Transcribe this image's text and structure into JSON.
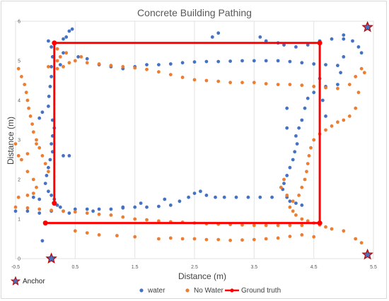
{
  "chart_data": {
    "type": "scatter",
    "title": "Concrete Building Pathing",
    "xlabel": "Distance (m)",
    "ylabel": "Distance (m)",
    "xlim": [
      -0.5,
      5.5
    ],
    "ylim": [
      0,
      6
    ],
    "x_ticks": [
      "-0.5",
      "0.5",
      "1.5",
      "2.5",
      "3.5",
      "4.5",
      "5.5"
    ],
    "y_ticks": [
      "0",
      "1",
      "2",
      "3",
      "4",
      "5",
      "6"
    ],
    "grid": "vertical",
    "legend_position": "bottom",
    "colors": {
      "water": "#4472c4",
      "no_water": "#ed7d31",
      "ground_truth": "#ff0000",
      "anchor_fill": "#4472c4",
      "anchor_stroke": "#c00000"
    },
    "series": [
      {
        "name": "water",
        "type": "scatter",
        "points": [
          [
            0.05,
            5.5
          ],
          [
            0.15,
            5.45
          ],
          [
            0.3,
            5.55
          ],
          [
            0.1,
            5.35
          ],
          [
            0.12,
            5.1
          ],
          [
            0.1,
            4.85
          ],
          [
            0.1,
            4.6
          ],
          [
            0.08,
            4.35
          ],
          [
            0.06,
            4.1
          ],
          [
            0.05,
            3.85
          ],
          [
            -0.05,
            3.7
          ],
          [
            -0.1,
            3.55
          ],
          [
            0.12,
            3.5
          ],
          [
            0.15,
            3.3
          ],
          [
            0.12,
            3.1
          ],
          [
            0.1,
            2.9
          ],
          [
            0.12,
            2.7
          ],
          [
            0.08,
            2.5
          ],
          [
            0.05,
            2.3
          ],
          [
            0.02,
            2.1
          ],
          [
            0.0,
            1.9
          ],
          [
            0.05,
            1.7
          ],
          [
            0.1,
            1.6
          ],
          [
            0.15,
            1.5
          ],
          [
            0.2,
            1.35
          ],
          [
            0.25,
            1.3
          ],
          [
            -0.1,
            1.5
          ],
          [
            -0.2,
            1.55
          ],
          [
            0.3,
            2.6
          ],
          [
            0.4,
            2.6
          ],
          [
            0.25,
            4.9
          ],
          [
            0.3,
            5.2
          ],
          [
            0.35,
            5.6
          ],
          [
            0.4,
            5.75
          ],
          [
            0.45,
            5.8
          ],
          [
            0.55,
            5.1
          ],
          [
            0.7,
            5.05
          ],
          [
            0.9,
            4.9
          ],
          [
            1.1,
            4.85
          ],
          [
            1.3,
            4.8
          ],
          [
            1.5,
            4.85
          ],
          [
            1.7,
            4.9
          ],
          [
            1.9,
            4.9
          ],
          [
            2.1,
            4.92
          ],
          [
            2.3,
            4.95
          ],
          [
            2.5,
            4.97
          ],
          [
            2.7,
            4.98
          ],
          [
            2.9,
            4.98
          ],
          [
            3.1,
            4.99
          ],
          [
            3.3,
            5.0
          ],
          [
            3.5,
            5.0
          ],
          [
            3.7,
            5.0
          ],
          [
            3.9,
            5.0
          ],
          [
            4.1,
            4.98
          ],
          [
            4.3,
            4.95
          ],
          [
            4.5,
            4.92
          ],
          [
            4.7,
            4.9
          ],
          [
            4.9,
            4.88
          ],
          [
            3.6,
            5.6
          ],
          [
            3.7,
            5.5
          ],
          [
            3.9,
            5.45
          ],
          [
            4.0,
            5.4
          ],
          [
            4.2,
            5.35
          ],
          [
            4.4,
            5.4
          ],
          [
            4.6,
            5.5
          ],
          [
            4.8,
            5.55
          ],
          [
            5.0,
            5.65
          ],
          [
            5.15,
            5.5
          ],
          [
            5.25,
            5.35
          ],
          [
            5.3,
            5.2
          ],
          [
            5.0,
            5.1
          ],
          [
            4.95,
            4.7
          ],
          [
            4.9,
            4.4
          ],
          [
            4.7,
            4.35
          ],
          [
            4.5,
            4.2
          ],
          [
            4.4,
            4.05
          ],
          [
            4.35,
            3.8
          ],
          [
            4.3,
            3.5
          ],
          [
            4.25,
            3.3
          ],
          [
            4.2,
            3.1
          ],
          [
            4.22,
            2.9
          ],
          [
            4.18,
            2.7
          ],
          [
            4.15,
            2.5
          ],
          [
            4.1,
            2.3
          ],
          [
            4.05,
            2.1
          ],
          [
            4.0,
            1.9
          ],
          [
            3.98,
            1.75
          ],
          [
            4.05,
            1.55
          ],
          [
            4.1,
            1.45
          ],
          [
            4.2,
            1.4
          ],
          [
            4.3,
            1.35
          ],
          [
            4.05,
            3.8
          ],
          [
            4.05,
            3.3
          ],
          [
            4.6,
            4.55
          ],
          [
            4.65,
            4.0
          ],
          [
            4.7,
            3.6
          ],
          [
            -0.5,
            1.2
          ],
          [
            -0.3,
            1.2
          ],
          [
            -0.1,
            1.15
          ],
          [
            0.1,
            1.2
          ],
          [
            0.3,
            1.2
          ],
          [
            0.5,
            1.25
          ],
          [
            0.7,
            1.25
          ],
          [
            0.9,
            1.25
          ],
          [
            1.1,
            1.25
          ],
          [
            1.3,
            1.28
          ],
          [
            1.5,
            1.3
          ],
          [
            1.7,
            1.3
          ],
          [
            1.9,
            1.32
          ],
          [
            2.1,
            1.35
          ],
          [
            2.25,
            1.45
          ],
          [
            2.4,
            1.55
          ],
          [
            2.5,
            1.65
          ],
          [
            2.6,
            1.7
          ],
          [
            2.7,
            1.6
          ],
          [
            2.85,
            1.55
          ],
          [
            3.0,
            1.55
          ],
          [
            3.2,
            1.55
          ],
          [
            3.4,
            1.55
          ],
          [
            3.6,
            1.55
          ],
          [
            3.8,
            1.55
          ],
          [
            2.0,
            1.5
          ],
          [
            1.6,
            1.4
          ],
          [
            1.3,
            1.3
          ],
          [
            0.8,
            1.2
          ],
          [
            0.4,
            1.15
          ],
          [
            -0.05,
            0.45
          ],
          [
            5.0,
            5.55
          ],
          [
            2.8,
            5.6
          ],
          [
            2.9,
            5.7
          ]
        ]
      },
      {
        "name": "No Water",
        "type": "scatter",
        "points": [
          [
            0.2,
            4.8
          ],
          [
            0.3,
            4.85
          ],
          [
            0.4,
            4.95
          ],
          [
            0.5,
            5.0
          ],
          [
            0.6,
            5.1
          ],
          [
            0.7,
            4.95
          ],
          [
            0.9,
            4.92
          ],
          [
            1.1,
            4.88
          ],
          [
            1.3,
            4.85
          ],
          [
            1.5,
            4.82
          ],
          [
            1.7,
            4.78
          ],
          [
            1.9,
            4.72
          ],
          [
            2.1,
            4.65
          ],
          [
            2.3,
            4.58
          ],
          [
            2.5,
            4.52
          ],
          [
            2.7,
            4.5
          ],
          [
            2.9,
            4.48
          ],
          [
            3.1,
            4.45
          ],
          [
            3.3,
            4.45
          ],
          [
            3.5,
            4.45
          ],
          [
            3.7,
            4.42
          ],
          [
            3.9,
            4.4
          ],
          [
            4.1,
            4.4
          ],
          [
            4.3,
            4.38
          ],
          [
            4.5,
            4.35
          ],
          [
            4.7,
            4.32
          ],
          [
            4.9,
            4.3
          ],
          [
            5.1,
            4.4
          ],
          [
            5.2,
            4.6
          ],
          [
            5.3,
            4.8
          ],
          [
            5.35,
            4.7
          ],
          [
            5.25,
            4.2
          ],
          [
            5.2,
            3.8
          ],
          [
            5.1,
            3.6
          ],
          [
            5.0,
            3.5
          ],
          [
            4.9,
            3.45
          ],
          [
            4.8,
            3.35
          ],
          [
            4.7,
            3.25
          ],
          [
            4.6,
            3.15
          ],
          [
            4.5,
            3.0
          ],
          [
            4.45,
            2.8
          ],
          [
            4.42,
            2.6
          ],
          [
            4.4,
            2.4
          ],
          [
            4.38,
            2.2
          ],
          [
            4.35,
            2.0
          ],
          [
            4.3,
            1.8
          ],
          [
            4.25,
            1.6
          ],
          [
            4.15,
            1.45
          ],
          [
            4.1,
            1.3
          ],
          [
            4.15,
            1.2
          ],
          [
            4.2,
            1.1
          ],
          [
            4.3,
            1.0
          ],
          [
            4.4,
            0.95
          ],
          [
            4.5,
            0.9
          ],
          [
            4.6,
            0.85
          ],
          [
            4.7,
            0.8
          ],
          [
            4.8,
            0.75
          ],
          [
            5.0,
            0.7
          ],
          [
            5.2,
            0.5
          ],
          [
            5.3,
            0.4
          ],
          [
            0.05,
            4.85
          ],
          [
            0.2,
            5.0
          ],
          [
            0.25,
            5.1
          ],
          [
            0.35,
            5.2
          ],
          [
            0.2,
            5.3
          ],
          [
            -0.45,
            4.8
          ],
          [
            -0.4,
            4.6
          ],
          [
            -0.35,
            4.4
          ],
          [
            -0.32,
            4.2
          ],
          [
            -0.3,
            4.0
          ],
          [
            -0.28,
            3.8
          ],
          [
            -0.25,
            3.6
          ],
          [
            -0.22,
            3.4
          ],
          [
            -0.2,
            3.2
          ],
          [
            -0.15,
            3.0
          ],
          [
            -0.1,
            2.8
          ],
          [
            -0.05,
            2.6
          ],
          [
            0.0,
            2.4
          ],
          [
            0.05,
            2.2
          ],
          [
            -0.15,
            2.9
          ],
          [
            -0.3,
            2.65
          ],
          [
            -0.4,
            2.5
          ],
          [
            -0.3,
            2.2
          ],
          [
            -0.2,
            2.0
          ],
          [
            -0.15,
            1.8
          ],
          [
            -0.2,
            1.65
          ],
          [
            -0.3,
            1.6
          ],
          [
            -0.45,
            1.55
          ],
          [
            -0.5,
            2.9
          ],
          [
            -0.45,
            2.6
          ],
          [
            -0.5,
            1.3
          ],
          [
            -0.3,
            1.28
          ],
          [
            -0.1,
            1.25
          ],
          [
            0.1,
            1.22
          ],
          [
            0.3,
            1.2
          ],
          [
            0.5,
            1.18
          ],
          [
            0.7,
            1.15
          ],
          [
            0.9,
            1.12
          ],
          [
            1.1,
            1.1
          ],
          [
            1.3,
            1.05
          ],
          [
            1.5,
            1.0
          ],
          [
            1.7,
            0.98
          ],
          [
            1.9,
            0.95
          ],
          [
            2.1,
            0.93
          ],
          [
            2.3,
            0.92
          ],
          [
            2.5,
            0.9
          ],
          [
            2.7,
            0.88
          ],
          [
            2.9,
            0.87
          ],
          [
            3.1,
            0.86
          ],
          [
            3.3,
            0.85
          ],
          [
            3.5,
            0.84
          ],
          [
            3.7,
            0.84
          ],
          [
            3.9,
            0.84
          ],
          [
            4.1,
            0.84
          ],
          [
            4.3,
            0.84
          ],
          [
            1.9,
            0.5
          ],
          [
            2.1,
            0.52
          ],
          [
            2.3,
            0.5
          ],
          [
            2.5,
            0.5
          ],
          [
            2.7,
            0.48
          ],
          [
            2.9,
            0.48
          ],
          [
            3.1,
            0.46
          ],
          [
            3.3,
            0.47
          ],
          [
            3.5,
            0.48
          ],
          [
            3.7,
            0.5
          ],
          [
            3.9,
            0.52
          ],
          [
            4.1,
            0.56
          ],
          [
            4.3,
            0.6
          ],
          [
            4.5,
            0.55
          ],
          [
            1.5,
            0.55
          ],
          [
            1.2,
            0.58
          ],
          [
            0.9,
            0.6
          ],
          [
            0.7,
            0.65
          ],
          [
            0.5,
            0.7
          ],
          [
            3.95,
            1.8
          ],
          [
            4.0,
            2.0
          ],
          [
            4.05,
            1.6
          ]
        ]
      },
      {
        "name": "Ground truth",
        "type": "line",
        "points": [
          [
            0.15,
            1.4
          ],
          [
            0.15,
            5.45
          ],
          [
            4.6,
            5.45
          ],
          [
            4.6,
            0.9
          ],
          [
            0.0,
            0.9
          ]
        ]
      }
    ],
    "anchors": {
      "name": "Anchor",
      "points": [
        [
          0.1,
          0.0
        ],
        [
          5.4,
          0.1
        ],
        [
          5.4,
          5.85
        ]
      ]
    }
  }
}
